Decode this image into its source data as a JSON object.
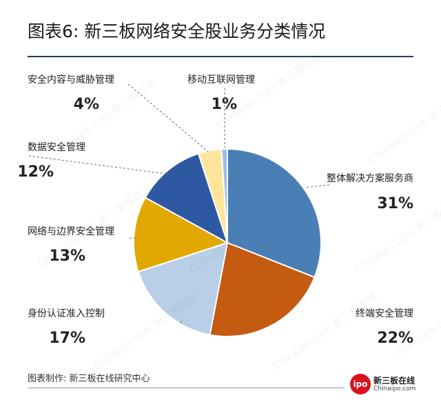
{
  "title": "图表6: 新三板网络安全股业务分类情况",
  "footer": "图表制作: 新三板在线研究中心",
  "logo": {
    "badge": "ipo",
    "cn": "新三板在线",
    "en": "Chinaipo.com",
    "badge_color": "#d8121e"
  },
  "watermark_text": "Chinaipo.com 新三板在线",
  "chart_data": {
    "type": "pie",
    "title": "图表6: 新三板网络安全股业务分类情况",
    "start_angle": "12 o'clock",
    "direction": "clockwise",
    "slices": [
      {
        "name": "整体解决方案服务商",
        "value": 31,
        "label": "31%",
        "color": "#4a7fb5"
      },
      {
        "name": "终端安全管理",
        "value": 22,
        "label": "22%",
        "color": "#c55a11"
      },
      {
        "name": "身份认证准入控制",
        "value": 17,
        "label": "17%",
        "color": "#b8cfe7"
      },
      {
        "name": "网络与边界安全管理",
        "value": 13,
        "label": "13%",
        "color": "#e0a800"
      },
      {
        "name": "数据安全管理",
        "value": 12,
        "label": "12%",
        "color": "#2f58a3"
      },
      {
        "name": "安全内容与威胁管理",
        "value": 4,
        "label": "4%",
        "color": "#fde59b"
      },
      {
        "name": "移动互联网管理",
        "value": 1,
        "label": "1%",
        "color": "#9dbfe3"
      }
    ]
  }
}
